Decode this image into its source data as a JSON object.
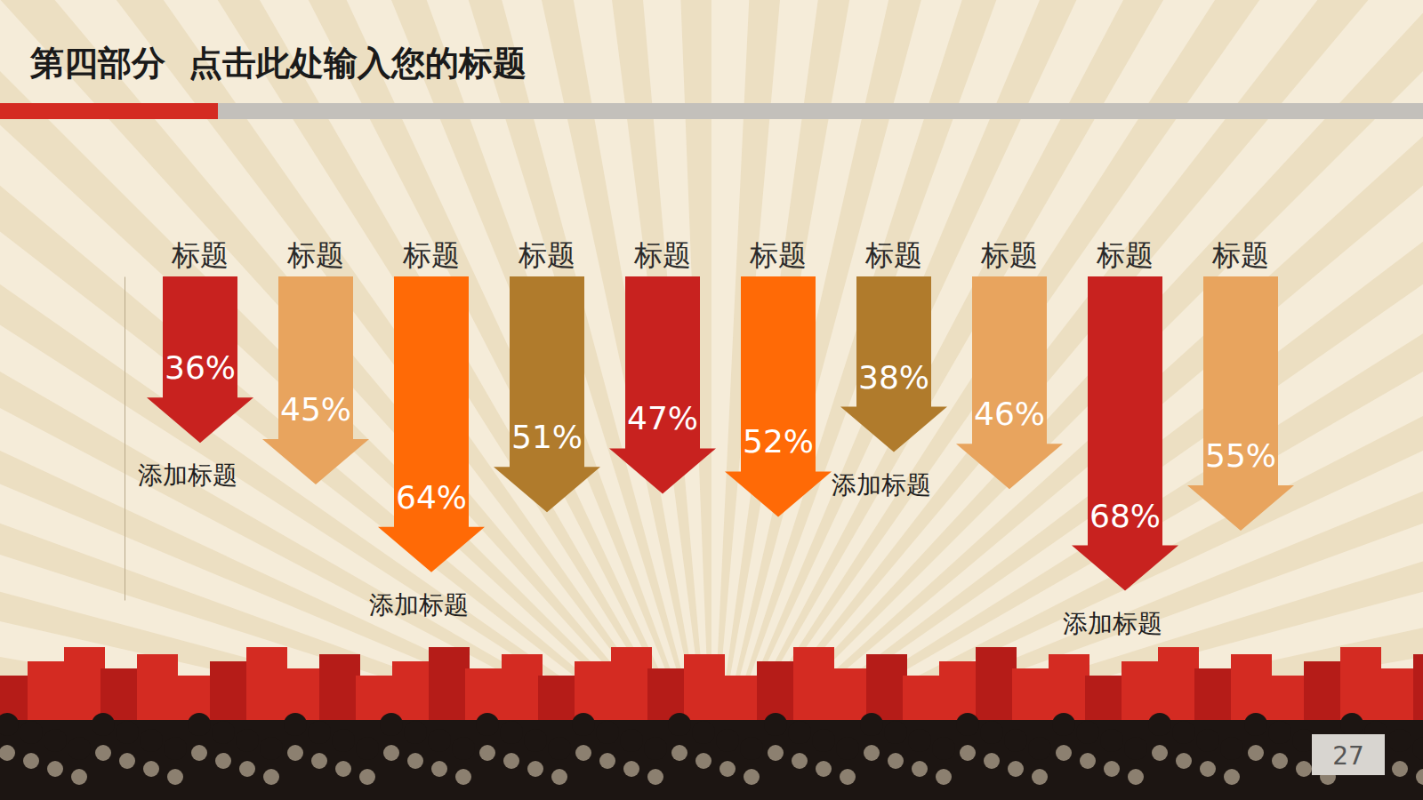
{
  "chart_data": {
    "type": "bar",
    "title": "第四部分  点击此处输入您的标题",
    "categories": [
      "标题",
      "标题",
      "标题",
      "标题",
      "标题",
      "标题",
      "标题",
      "标题",
      "标题",
      "标题"
    ],
    "values": [
      36,
      45,
      64,
      51,
      47,
      52,
      38,
      46,
      68,
      55
    ],
    "value_labels": [
      "36%",
      "45%",
      "64%",
      "51%",
      "47%",
      "52%",
      "38%",
      "46%",
      "68%",
      "55%"
    ],
    "colors": [
      "#c8221f",
      "#e8a45e",
      "#ff6a06",
      "#b07b2c",
      "#c8221f",
      "#ff6a06",
      "#b07b2c",
      "#e8a45e",
      "#c8221f",
      "#e8a45e"
    ],
    "ylim": [
      0,
      70
    ],
    "data_labels": true,
    "tick_labels": "x",
    "annotations": [
      "添加标题",
      null,
      "添加标题",
      null,
      null,
      null,
      "添加标题",
      null,
      "添加标题",
      null
    ],
    "page_number": "27"
  }
}
